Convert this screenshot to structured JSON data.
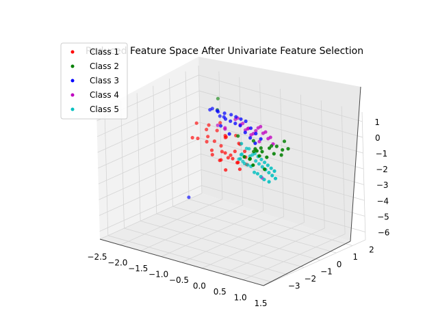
{
  "chart_data": {
    "type": "scatter",
    "projection": "3d",
    "title": "Reduced Feature Space After Univariate Feature Selection",
    "xlabel": "",
    "ylabel": "",
    "zlabel": "",
    "xlim": [
      -2.5,
      1.5
    ],
    "ylim": [
      -3.5,
      2.8
    ],
    "zlim": [
      -6.5,
      1.6
    ],
    "xticks": [
      "−2.5",
      "−2.0",
      "−1.5",
      "−1.0",
      "−0.5",
      "0.0",
      "0.5",
      "1.0",
      "1.5"
    ],
    "yticks": [
      "−3",
      "−2",
      "−1",
      "0",
      "1",
      "2"
    ],
    "zticks": [
      "1",
      "0",
      "−1",
      "−2",
      "−3",
      "−4",
      "−5",
      "−6"
    ],
    "grid": true,
    "legend_position": "upper-left",
    "series": [
      {
        "name": "Class 1",
        "color": "#ff0000",
        "points": [
          [
            -2.1,
            1.6,
            -1.2
          ],
          [
            -2.0,
            1.4,
            -2.0
          ],
          [
            -2.05,
            1.2,
            -1.9
          ],
          [
            -1.9,
            1.7,
            -1.5
          ],
          [
            -1.8,
            1.6,
            -1.1
          ],
          [
            -1.75,
            1.4,
            -1.7
          ],
          [
            -1.7,
            1.2,
            -1.9
          ],
          [
            -1.6,
            1.6,
            -1.3
          ],
          [
            -1.55,
            1.3,
            -1.8
          ],
          [
            -1.5,
            1.0,
            -2.2
          ],
          [
            -1.45,
            0.9,
            -2.4
          ],
          [
            -1.4,
            1.6,
            -1.6
          ],
          [
            -1.35,
            1.2,
            -1.9
          ],
          [
            -1.3,
            1.4,
            -1.4
          ],
          [
            -1.25,
            1.0,
            -2.1
          ],
          [
            -1.2,
            0.8,
            -2.5
          ],
          [
            -1.15,
            0.6,
            -2.4
          ],
          [
            -1.1,
            1.5,
            -1.2
          ],
          [
            -1.05,
            0.7,
            -1.9
          ],
          [
            -1.0,
            0.9,
            -2.1
          ],
          [
            -0.95,
            1.3,
            -1.5
          ],
          [
            -0.9,
            0.5,
            -2.0
          ],
          [
            -0.85,
            0.8,
            -1.7
          ],
          [
            -0.8,
            1.0,
            -1.3
          ],
          [
            -0.75,
            0.4,
            -1.9
          ],
          [
            -0.7,
            0.6,
            -2.2
          ],
          [
            -0.65,
            0.9,
            -1.6
          ],
          [
            -0.6,
            0.3,
            -2.0
          ],
          [
            -0.55,
            0.7,
            -1.8
          ],
          [
            -0.5,
            0.2,
            -2.3
          ],
          [
            -0.45,
            0.5,
            -2.1
          ],
          [
            -1.6,
            1.8,
            -0.9
          ],
          [
            -1.2,
            1.1,
            -1.1
          ],
          [
            -0.85,
            0.2,
            -2.6
          ]
        ]
      },
      {
        "name": "Class 2",
        "color": "#008000",
        "points": [
          [
            0.9,
            -2.2,
            1.0
          ],
          [
            0.95,
            -2.0,
            0.9
          ],
          [
            1.0,
            -2.3,
            0.8
          ],
          [
            1.05,
            -1.8,
            1.1
          ],
          [
            1.1,
            -2.1,
            0.7
          ],
          [
            1.15,
            -1.6,
            1.2
          ],
          [
            1.2,
            -1.9,
            0.9
          ],
          [
            1.25,
            -1.5,
            1.0
          ],
          [
            1.3,
            -1.7,
            0.8
          ],
          [
            1.35,
            -1.4,
            1.1
          ],
          [
            0.85,
            -2.5,
            0.6
          ],
          [
            0.8,
            -2.4,
            0.5
          ],
          [
            0.75,
            -2.6,
            0.7
          ],
          [
            1.0,
            -2.7,
            0.4
          ],
          [
            0.9,
            -1.3,
            0.9
          ],
          [
            0.6,
            -1.2,
            0.5
          ],
          [
            0.5,
            -1.4,
            0.3
          ],
          [
            1.1,
            -1.0,
            1.2
          ],
          [
            1.2,
            -2.5,
            0.2
          ],
          [
            0.7,
            -1.8,
            0.8
          ],
          [
            -1.7,
            1.9,
            -0.2
          ],
          [
            -1.8,
            2.2,
            0.3
          ],
          [
            -0.2,
            -0.6,
            0.4
          ],
          [
            0.3,
            -0.9,
            0.6
          ]
        ]
      },
      {
        "name": "Class 3",
        "color": "#0000ff",
        "points": [
          [
            -1.6,
            1.2,
            0.2
          ],
          [
            -1.5,
            1.1,
            0.4
          ],
          [
            -1.3,
            0.9,
            0.5
          ],
          [
            -1.2,
            0.7,
            0.6
          ],
          [
            -1.1,
            0.8,
            0.3
          ],
          [
            -1.0,
            0.6,
            0.7
          ],
          [
            -0.9,
            0.4,
            0.5
          ],
          [
            -0.8,
            0.5,
            0.8
          ],
          [
            -0.7,
            0.2,
            0.6
          ],
          [
            -0.6,
            0.3,
            0.9
          ],
          [
            -0.5,
            0.0,
            0.7
          ],
          [
            -0.4,
            0.1,
            1.0
          ],
          [
            -0.3,
            -0.2,
            0.8
          ],
          [
            -0.2,
            -0.1,
            1.1
          ],
          [
            -0.1,
            -0.4,
            0.6
          ],
          [
            0.0,
            -0.3,
            0.9
          ],
          [
            0.1,
            -0.6,
            0.5
          ],
          [
            0.2,
            -0.5,
            0.8
          ],
          [
            0.3,
            -0.8,
            0.4
          ],
          [
            0.4,
            -0.7,
            0.7
          ],
          [
            -1.4,
            1.3,
            -0.1
          ],
          [
            -0.9,
            0.1,
            0.2
          ],
          [
            -0.45,
            -0.5,
            0.3
          ],
          [
            -2.3,
            1.5,
            -6.0
          ]
        ]
      },
      {
        "name": "Class 4",
        "color": "#bf00bf",
        "points": [
          [
            -0.9,
            1.0,
            0.2
          ],
          [
            -0.8,
            0.9,
            0.4
          ],
          [
            -0.7,
            0.8,
            0.1
          ],
          [
            -0.6,
            0.7,
            0.3
          ],
          [
            -0.5,
            0.6,
            0.0
          ],
          [
            -0.4,
            0.5,
            0.2
          ],
          [
            -0.3,
            0.3,
            0.4
          ],
          [
            -0.2,
            0.2,
            0.1
          ],
          [
            -0.1,
            0.1,
            0.3
          ],
          [
            0.0,
            0.0,
            0.6
          ],
          [
            0.1,
            -0.1,
            0.9
          ],
          [
            0.2,
            -0.2,
            1.1
          ],
          [
            0.3,
            -0.3,
            0.8
          ],
          [
            0.4,
            -0.4,
            1.0
          ],
          [
            0.5,
            -0.5,
            0.7
          ],
          [
            0.6,
            -0.6,
            0.9
          ],
          [
            0.7,
            -0.7,
            0.6
          ],
          [
            -1.2,
            1.1,
            -0.6
          ],
          [
            -1.5,
            1.4,
            -0.8
          ],
          [
            -1.0,
            0.6,
            -0.3
          ],
          [
            -0.2,
            0.8,
            -2.9
          ],
          [
            0.2,
            -0.3,
            0.2
          ]
        ]
      },
      {
        "name": "Class 5",
        "color": "#00bfbf",
        "points": [
          [
            -0.4,
            0.4,
            -1.0
          ],
          [
            -0.3,
            0.3,
            -0.9
          ],
          [
            -0.2,
            0.1,
            -1.2
          ],
          [
            -0.1,
            0.0,
            -1.0
          ],
          [
            0.0,
            -0.1,
            -0.8
          ],
          [
            0.1,
            -0.3,
            -1.1
          ],
          [
            0.2,
            -0.4,
            -0.7
          ],
          [
            0.3,
            -0.6,
            -1.0
          ],
          [
            0.4,
            -0.7,
            -0.6
          ],
          [
            0.5,
            -0.9,
            -0.9
          ],
          [
            0.6,
            -1.0,
            -0.5
          ],
          [
            0.7,
            -1.2,
            -0.8
          ],
          [
            0.8,
            -1.3,
            -0.4
          ],
          [
            0.9,
            -1.5,
            -0.7
          ],
          [
            1.0,
            -1.6,
            -0.3
          ],
          [
            1.1,
            -1.8,
            -0.6
          ],
          [
            1.2,
            -1.9,
            -0.2
          ],
          [
            1.3,
            -2.1,
            -0.5
          ],
          [
            -0.6,
            0.6,
            -1.6
          ],
          [
            -0.5,
            0.4,
            -1.9
          ],
          [
            -0.3,
            0.0,
            -1.7
          ],
          [
            -0.1,
            -0.3,
            -1.5
          ],
          [
            0.1,
            -0.6,
            -1.3
          ],
          [
            0.3,
            -0.9,
            -1.4
          ],
          [
            0.5,
            -1.2,
            -1.2
          ],
          [
            0.7,
            -1.5,
            -1.1
          ],
          [
            0.9,
            -1.8,
            -1.0
          ],
          [
            1.1,
            -2.0,
            -0.9
          ],
          [
            -0.8,
            0.9,
            -2.2
          ],
          [
            0.0,
            -0.9,
            0.2
          ],
          [
            -0.7,
            0.8,
            -1.8
          ],
          [
            -0.2,
            -0.5,
            -1.1
          ]
        ]
      }
    ]
  }
}
